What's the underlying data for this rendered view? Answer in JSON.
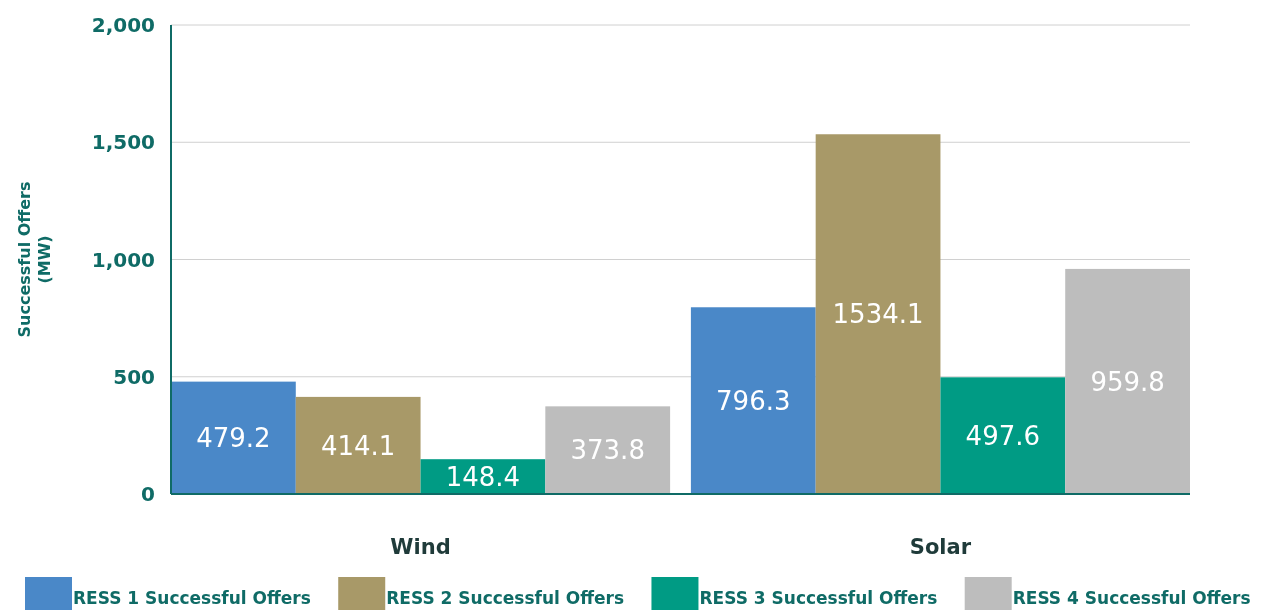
{
  "chart_data": {
    "type": "bar",
    "ylabel": "Successful Offers\n(MW)",
    "categories": [
      "Wind",
      "Solar"
    ],
    "series": [
      {
        "name": "RESS 1 Successful Offers",
        "color": "#4a88c8",
        "values": [
          479.2,
          796.3
        ]
      },
      {
        "name": "RESS 2 Successful Offers",
        "color": "#a89968",
        "values": [
          414.1,
          1534.1
        ]
      },
      {
        "name": "RESS 3 Successful Offers",
        "color": "#009b84",
        "values": [
          148.4,
          497.6
        ]
      },
      {
        "name": "RESS 4 Successful Offers",
        "color": "#bdbdbd",
        "values": [
          373.8,
          959.8
        ]
      }
    ],
    "ylim": [
      0,
      2000
    ],
    "yticks": [
      0,
      500,
      {
        "value": 1000,
        "label": "1,000"
      },
      {
        "value": 1500,
        "label": "1,500"
      },
      {
        "value": 2000,
        "label": "2,000"
      }
    ],
    "grid": "y",
    "legend": "bottom",
    "data_labels": true
  }
}
